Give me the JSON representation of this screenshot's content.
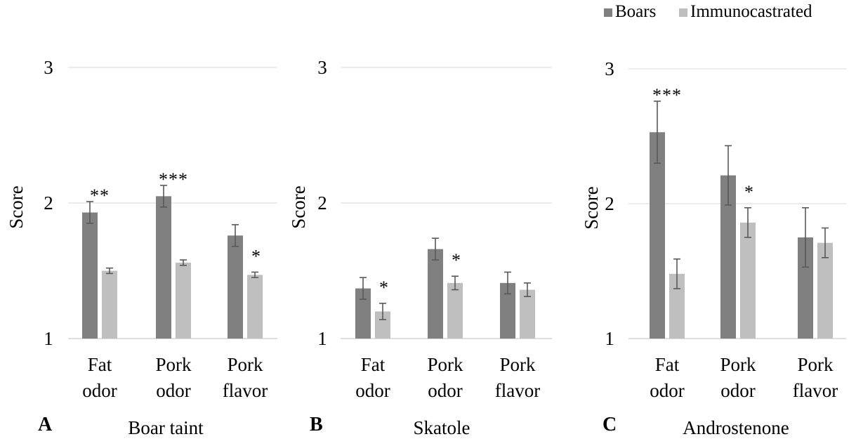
{
  "legend": {
    "position": "top-right",
    "items": [
      {
        "label": "Boars",
        "color": "#808080"
      },
      {
        "label": "Immunocastrated",
        "color": "#bfbfbf"
      }
    ]
  },
  "chart_data": [
    {
      "type": "bar",
      "panel_letter": "A",
      "caption": "Boar taint",
      "ylabel": "Score",
      "ylim": [
        1,
        3
      ],
      "yticks": [
        "1",
        "2",
        "3"
      ],
      "grid": true,
      "categories": [
        [
          "Fat",
          "odor"
        ],
        [
          "Pork",
          "odor"
        ],
        [
          "Pork",
          "flavor"
        ]
      ],
      "series": [
        {
          "name": "Boars",
          "color": "#808080",
          "values": [
            1.93,
            2.05,
            1.76
          ],
          "errors": [
            0.08,
            0.08,
            0.08
          ]
        },
        {
          "name": "Immunocastrated",
          "color": "#bfbfbf",
          "values": [
            1.5,
            1.56,
            1.47
          ],
          "errors": [
            0.02,
            0.02,
            0.02
          ]
        }
      ],
      "significance": [
        "**",
        "***",
        "*"
      ]
    },
    {
      "type": "bar",
      "panel_letter": "B",
      "caption": "Skatole",
      "ylabel": "Score",
      "ylim": [
        1,
        3
      ],
      "yticks": [
        "1",
        "2",
        "3"
      ],
      "grid": true,
      "categories": [
        [
          "Fat",
          "odor"
        ],
        [
          "Pork",
          "odor"
        ],
        [
          "Pork",
          "flavor"
        ]
      ],
      "series": [
        {
          "name": "Boars",
          "color": "#808080",
          "values": [
            1.37,
            1.66,
            1.41
          ],
          "errors": [
            0.08,
            0.08,
            0.08
          ]
        },
        {
          "name": "Immunocastrated",
          "color": "#bfbfbf",
          "values": [
            1.2,
            1.41,
            1.36
          ],
          "errors": [
            0.06,
            0.05,
            0.05
          ]
        }
      ],
      "significance": [
        "*",
        "*",
        ""
      ]
    },
    {
      "type": "bar",
      "panel_letter": "C",
      "caption": "Androstenone",
      "ylabel": "Score",
      "ylim": [
        1,
        3
      ],
      "yticks": [
        "1",
        "2",
        "3"
      ],
      "grid": true,
      "categories": [
        [
          "Fat",
          "odor"
        ],
        [
          "Pork",
          "odor"
        ],
        [
          "Pork",
          "flavor"
        ]
      ],
      "series": [
        {
          "name": "Boars",
          "color": "#808080",
          "values": [
            2.53,
            2.21,
            1.75
          ],
          "errors": [
            0.23,
            0.22,
            0.22
          ]
        },
        {
          "name": "Immunocastrated",
          "color": "#bfbfbf",
          "values": [
            1.48,
            1.86,
            1.71
          ],
          "errors": [
            0.11,
            0.11,
            0.11
          ]
        }
      ],
      "significance": [
        "***",
        "*",
        ""
      ]
    }
  ]
}
